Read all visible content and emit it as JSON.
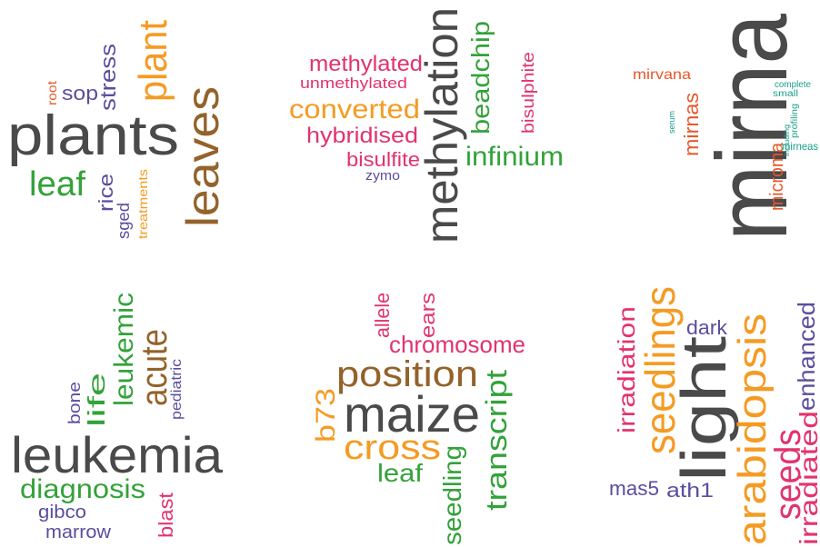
{
  "clouds": [
    {
      "words": [
        "plants",
        "leaves",
        "plant",
        "stress",
        "sop",
        "root",
        "leaf",
        "rice",
        "sged",
        "treatments"
      ]
    },
    {
      "words": [
        "methylation",
        "methylated",
        "unmethylated",
        "converted",
        "hybridised",
        "bisulfite",
        "zymo",
        "beadchip",
        "infinium",
        "bisulphite"
      ]
    },
    {
      "words": [
        "mirna",
        "mirvana",
        "mirnas",
        "serum",
        "microma",
        "complete",
        "small",
        "including",
        "profiling",
        "mirneas"
      ]
    },
    {
      "words": [
        "leukemia",
        "acute",
        "leukemic",
        "life",
        "bone",
        "pediatric",
        "diagnosis",
        "gibco",
        "marrow",
        "blast"
      ]
    },
    {
      "words": [
        "maize",
        "position",
        "chromosome",
        "allele",
        "ears",
        "b73",
        "cross",
        "leaf",
        "seedling",
        "transcript"
      ]
    },
    {
      "words": [
        "light",
        "seedlings",
        "arabidopsis",
        "irradiation",
        "dark",
        "enhanced",
        "seeds",
        "irradiated",
        "mas5",
        "ath1"
      ]
    }
  ]
}
